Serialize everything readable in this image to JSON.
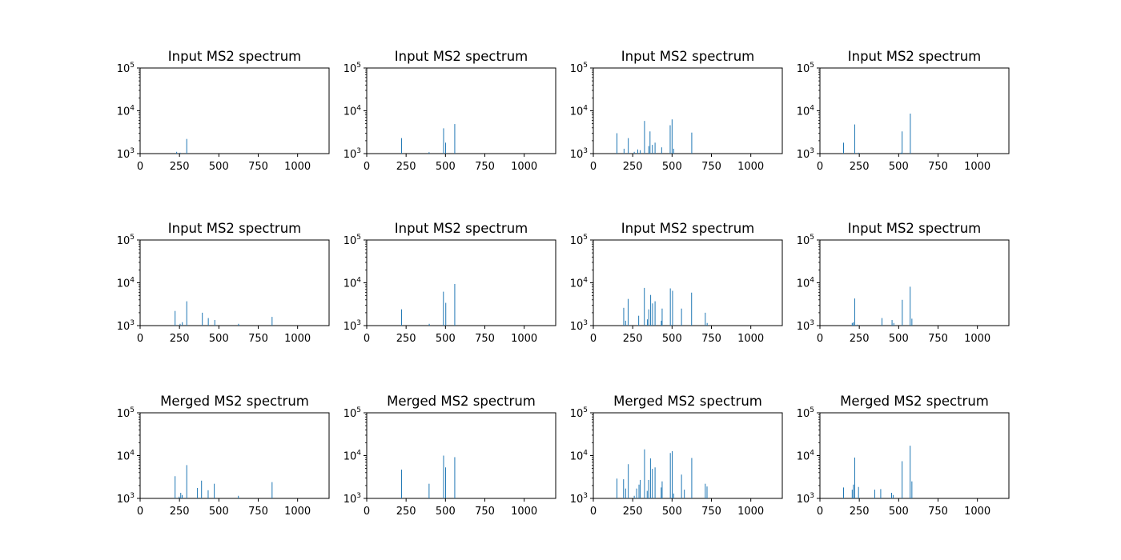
{
  "figure": {
    "peak_color": "#1f77b4"
  },
  "chart_data": [
    {
      "type": "bar",
      "title": "Input MS2 spectrum",
      "xlabel": "",
      "ylabel": "",
      "xlim": [
        0,
        1200
      ],
      "ylim": [
        1000,
        100000
      ],
      "yscale": "log",
      "x_ticks": [
        "0",
        "250",
        "500",
        "750",
        "1000"
      ],
      "y_ticks": [
        "10^3",
        "10^4",
        "10^5"
      ],
      "peaks": [
        [
          232,
          1100
        ],
        [
          254,
          1050
        ],
        [
          296,
          2200
        ]
      ]
    },
    {
      "type": "bar",
      "title": "Input MS2 spectrum",
      "xlabel": "",
      "ylabel": "",
      "xlim": [
        0,
        1200
      ],
      "ylim": [
        1000,
        100000
      ],
      "yscale": "log",
      "x_ticks": [
        "0",
        "250",
        "500",
        "750",
        "1000"
      ],
      "y_ticks": [
        "10^3",
        "10^4",
        "10^5"
      ],
      "peaks": [
        [
          221,
          2300
        ],
        [
          396,
          1080
        ],
        [
          488,
          3900
        ],
        [
          501,
          1800
        ],
        [
          559,
          4900
        ]
      ]
    },
    {
      "type": "bar",
      "title": "Input MS2 spectrum",
      "xlabel": "",
      "ylabel": "",
      "xlim": [
        0,
        1200
      ],
      "ylim": [
        1000,
        100000
      ],
      "yscale": "log",
      "x_ticks": [
        "0",
        "250",
        "500",
        "750",
        "1000"
      ],
      "y_ticks": [
        "10^3",
        "10^4",
        "10^5"
      ],
      "peaks": [
        [
          150,
          3000
        ],
        [
          195,
          1300
        ],
        [
          222,
          2300
        ],
        [
          260,
          1100
        ],
        [
          282,
          1250
        ],
        [
          298,
          1200
        ],
        [
          325,
          5800
        ],
        [
          352,
          1500
        ],
        [
          360,
          3300
        ],
        [
          375,
          1600
        ],
        [
          392,
          1800
        ],
        [
          434,
          1400
        ],
        [
          488,
          4600
        ],
        [
          500,
          6300
        ],
        [
          510,
          1300
        ],
        [
          625,
          3100
        ]
      ]
    },
    {
      "type": "bar",
      "title": "Input MS2 spectrum",
      "xlabel": "",
      "ylabel": "",
      "xlim": [
        0,
        1200
      ],
      "ylim": [
        1000,
        100000
      ],
      "yscale": "log",
      "x_ticks": [
        "0",
        "250",
        "500",
        "750",
        "1000"
      ],
      "y_ticks": [
        "10^3",
        "10^4",
        "10^5"
      ],
      "peaks": [
        [
          150,
          1800
        ],
        [
          221,
          4800
        ],
        [
          245,
          1050
        ],
        [
          515,
          1050
        ],
        [
          522,
          3300
        ],
        [
          574,
          8600
        ]
      ]
    },
    {
      "type": "bar",
      "title": "Input MS2 spectrum",
      "xlabel": "",
      "ylabel": "",
      "xlim": [
        0,
        1200
      ],
      "ylim": [
        1000,
        100000
      ],
      "yscale": "log",
      "x_ticks": [
        "0",
        "250",
        "500",
        "750",
        "1000"
      ],
      "y_ticks": [
        "10^3",
        "10^4",
        "10^5"
      ],
      "peaks": [
        [
          222,
          2200
        ],
        [
          254,
          1100
        ],
        [
          268,
          1200
        ],
        [
          296,
          3700
        ],
        [
          395,
          2000
        ],
        [
          433,
          1500
        ],
        [
          474,
          1350
        ],
        [
          625,
          1100
        ],
        [
          838,
          1600
        ]
      ]
    },
    {
      "type": "bar",
      "title": "Input MS2 spectrum",
      "xlabel": "",
      "ylabel": "",
      "xlim": [
        0,
        1200
      ],
      "ylim": [
        1000,
        100000
      ],
      "yscale": "log",
      "x_ticks": [
        "0",
        "250",
        "500",
        "750",
        "1000"
      ],
      "y_ticks": [
        "10^3",
        "10^4",
        "10^5"
      ],
      "peaks": [
        [
          221,
          2400
        ],
        [
          397,
          1100
        ],
        [
          487,
          6200
        ],
        [
          502,
          3400
        ],
        [
          559,
          9400
        ]
      ]
    },
    {
      "type": "bar",
      "title": "Input MS2 spectrum",
      "xlabel": "",
      "ylabel": "",
      "xlim": [
        0,
        1200
      ],
      "ylim": [
        1000,
        100000
      ],
      "yscale": "log",
      "x_ticks": [
        "0",
        "250",
        "500",
        "750",
        "1000"
      ],
      "y_ticks": [
        "10^3",
        "10^4",
        "10^5"
      ],
      "peaks": [
        [
          193,
          2600
        ],
        [
          205,
          1300
        ],
        [
          221,
          4200
        ],
        [
          288,
          1700
        ],
        [
          324,
          7600
        ],
        [
          343,
          1400
        ],
        [
          352,
          2400
        ],
        [
          364,
          5200
        ],
        [
          376,
          3300
        ],
        [
          392,
          3700
        ],
        [
          432,
          1300
        ],
        [
          437,
          2500
        ],
        [
          489,
          7400
        ],
        [
          503,
          6500
        ],
        [
          560,
          2500
        ],
        [
          624,
          5900
        ],
        [
          711,
          2000
        ],
        [
          723,
          1150
        ]
      ]
    },
    {
      "type": "bar",
      "title": "Input MS2 spectrum",
      "xlabel": "",
      "ylabel": "",
      "xlim": [
        0,
        1200
      ],
      "ylim": [
        1000,
        100000
      ],
      "yscale": "log",
      "x_ticks": [
        "0",
        "250",
        "500",
        "750",
        "1000"
      ],
      "y_ticks": [
        "10^3",
        "10^4",
        "10^5"
      ],
      "peaks": [
        [
          205,
          1150
        ],
        [
          212,
          1200
        ],
        [
          221,
          4300
        ],
        [
          237,
          1050
        ],
        [
          394,
          1500
        ],
        [
          458,
          1350
        ],
        [
          469,
          1150
        ],
        [
          523,
          4000
        ],
        [
          573,
          8100
        ],
        [
          584,
          1450
        ]
      ]
    },
    {
      "type": "bar",
      "title": "Merged MS2 spectrum",
      "xlabel": "",
      "ylabel": "",
      "xlim": [
        0,
        1200
      ],
      "ylim": [
        1000,
        100000
      ],
      "yscale": "log",
      "x_ticks": [
        "0",
        "250",
        "500",
        "750",
        "1000"
      ],
      "y_ticks": [
        "10^3",
        "10^4",
        "10^5"
      ],
      "peaks": [
        [
          222,
          3300
        ],
        [
          248,
          1100
        ],
        [
          258,
          1350
        ],
        [
          267,
          1200
        ],
        [
          296,
          6000
        ],
        [
          364,
          1750
        ],
        [
          390,
          2600
        ],
        [
          432,
          1550
        ],
        [
          471,
          2200
        ],
        [
          624,
          1150
        ],
        [
          838,
          2400
        ]
      ]
    },
    {
      "type": "bar",
      "title": "Merged MS2 spectrum",
      "xlabel": "",
      "ylabel": "",
      "xlim": [
        0,
        1200
      ],
      "ylim": [
        1000,
        100000
      ],
      "yscale": "log",
      "x_ticks": [
        "0",
        "250",
        "500",
        "750",
        "1000"
      ],
      "y_ticks": [
        "10^3",
        "10^4",
        "10^5"
      ],
      "peaks": [
        [
          221,
          4700
        ],
        [
          396,
          2200
        ],
        [
          488,
          10000
        ],
        [
          501,
          5300
        ],
        [
          559,
          9200
        ]
      ]
    },
    {
      "type": "bar",
      "title": "Merged MS2 spectrum",
      "xlabel": "",
      "ylabel": "",
      "xlim": [
        0,
        1200
      ],
      "ylim": [
        1000,
        100000
      ],
      "yscale": "log",
      "x_ticks": [
        "0",
        "250",
        "500",
        "750",
        "1000"
      ],
      "y_ticks": [
        "10^3",
        "10^4",
        "10^5"
      ],
      "peaks": [
        [
          150,
          2900
        ],
        [
          192,
          2800
        ],
        [
          205,
          1700
        ],
        [
          222,
          6300
        ],
        [
          260,
          1150
        ],
        [
          275,
          1700
        ],
        [
          290,
          2100
        ],
        [
          298,
          2700
        ],
        [
          325,
          14000
        ],
        [
          342,
          1500
        ],
        [
          351,
          2700
        ],
        [
          363,
          8600
        ],
        [
          375,
          4900
        ],
        [
          392,
          5300
        ],
        [
          431,
          1800
        ],
        [
          437,
          2500
        ],
        [
          489,
          11500
        ],
        [
          501,
          12700
        ],
        [
          510,
          1300
        ],
        [
          560,
          3600
        ],
        [
          578,
          1600
        ],
        [
          625,
          8800
        ],
        [
          711,
          2200
        ],
        [
          722,
          1900
        ]
      ]
    },
    {
      "type": "bar",
      "title": "Merged MS2 spectrum",
      "xlabel": "",
      "ylabel": "",
      "xlim": [
        0,
        1200
      ],
      "ylim": [
        1000,
        100000
      ],
      "yscale": "log",
      "x_ticks": [
        "0",
        "250",
        "500",
        "750",
        "1000"
      ],
      "y_ticks": [
        "10^3",
        "10^4",
        "10^5"
      ],
      "peaks": [
        [
          150,
          1800
        ],
        [
          205,
          1600
        ],
        [
          213,
          2100
        ],
        [
          221,
          9000
        ],
        [
          245,
          1850
        ],
        [
          348,
          1600
        ],
        [
          386,
          1650
        ],
        [
          455,
          1350
        ],
        [
          465,
          1200
        ],
        [
          522,
          7400
        ],
        [
          573,
          17000
        ],
        [
          584,
          2500
        ]
      ]
    }
  ]
}
